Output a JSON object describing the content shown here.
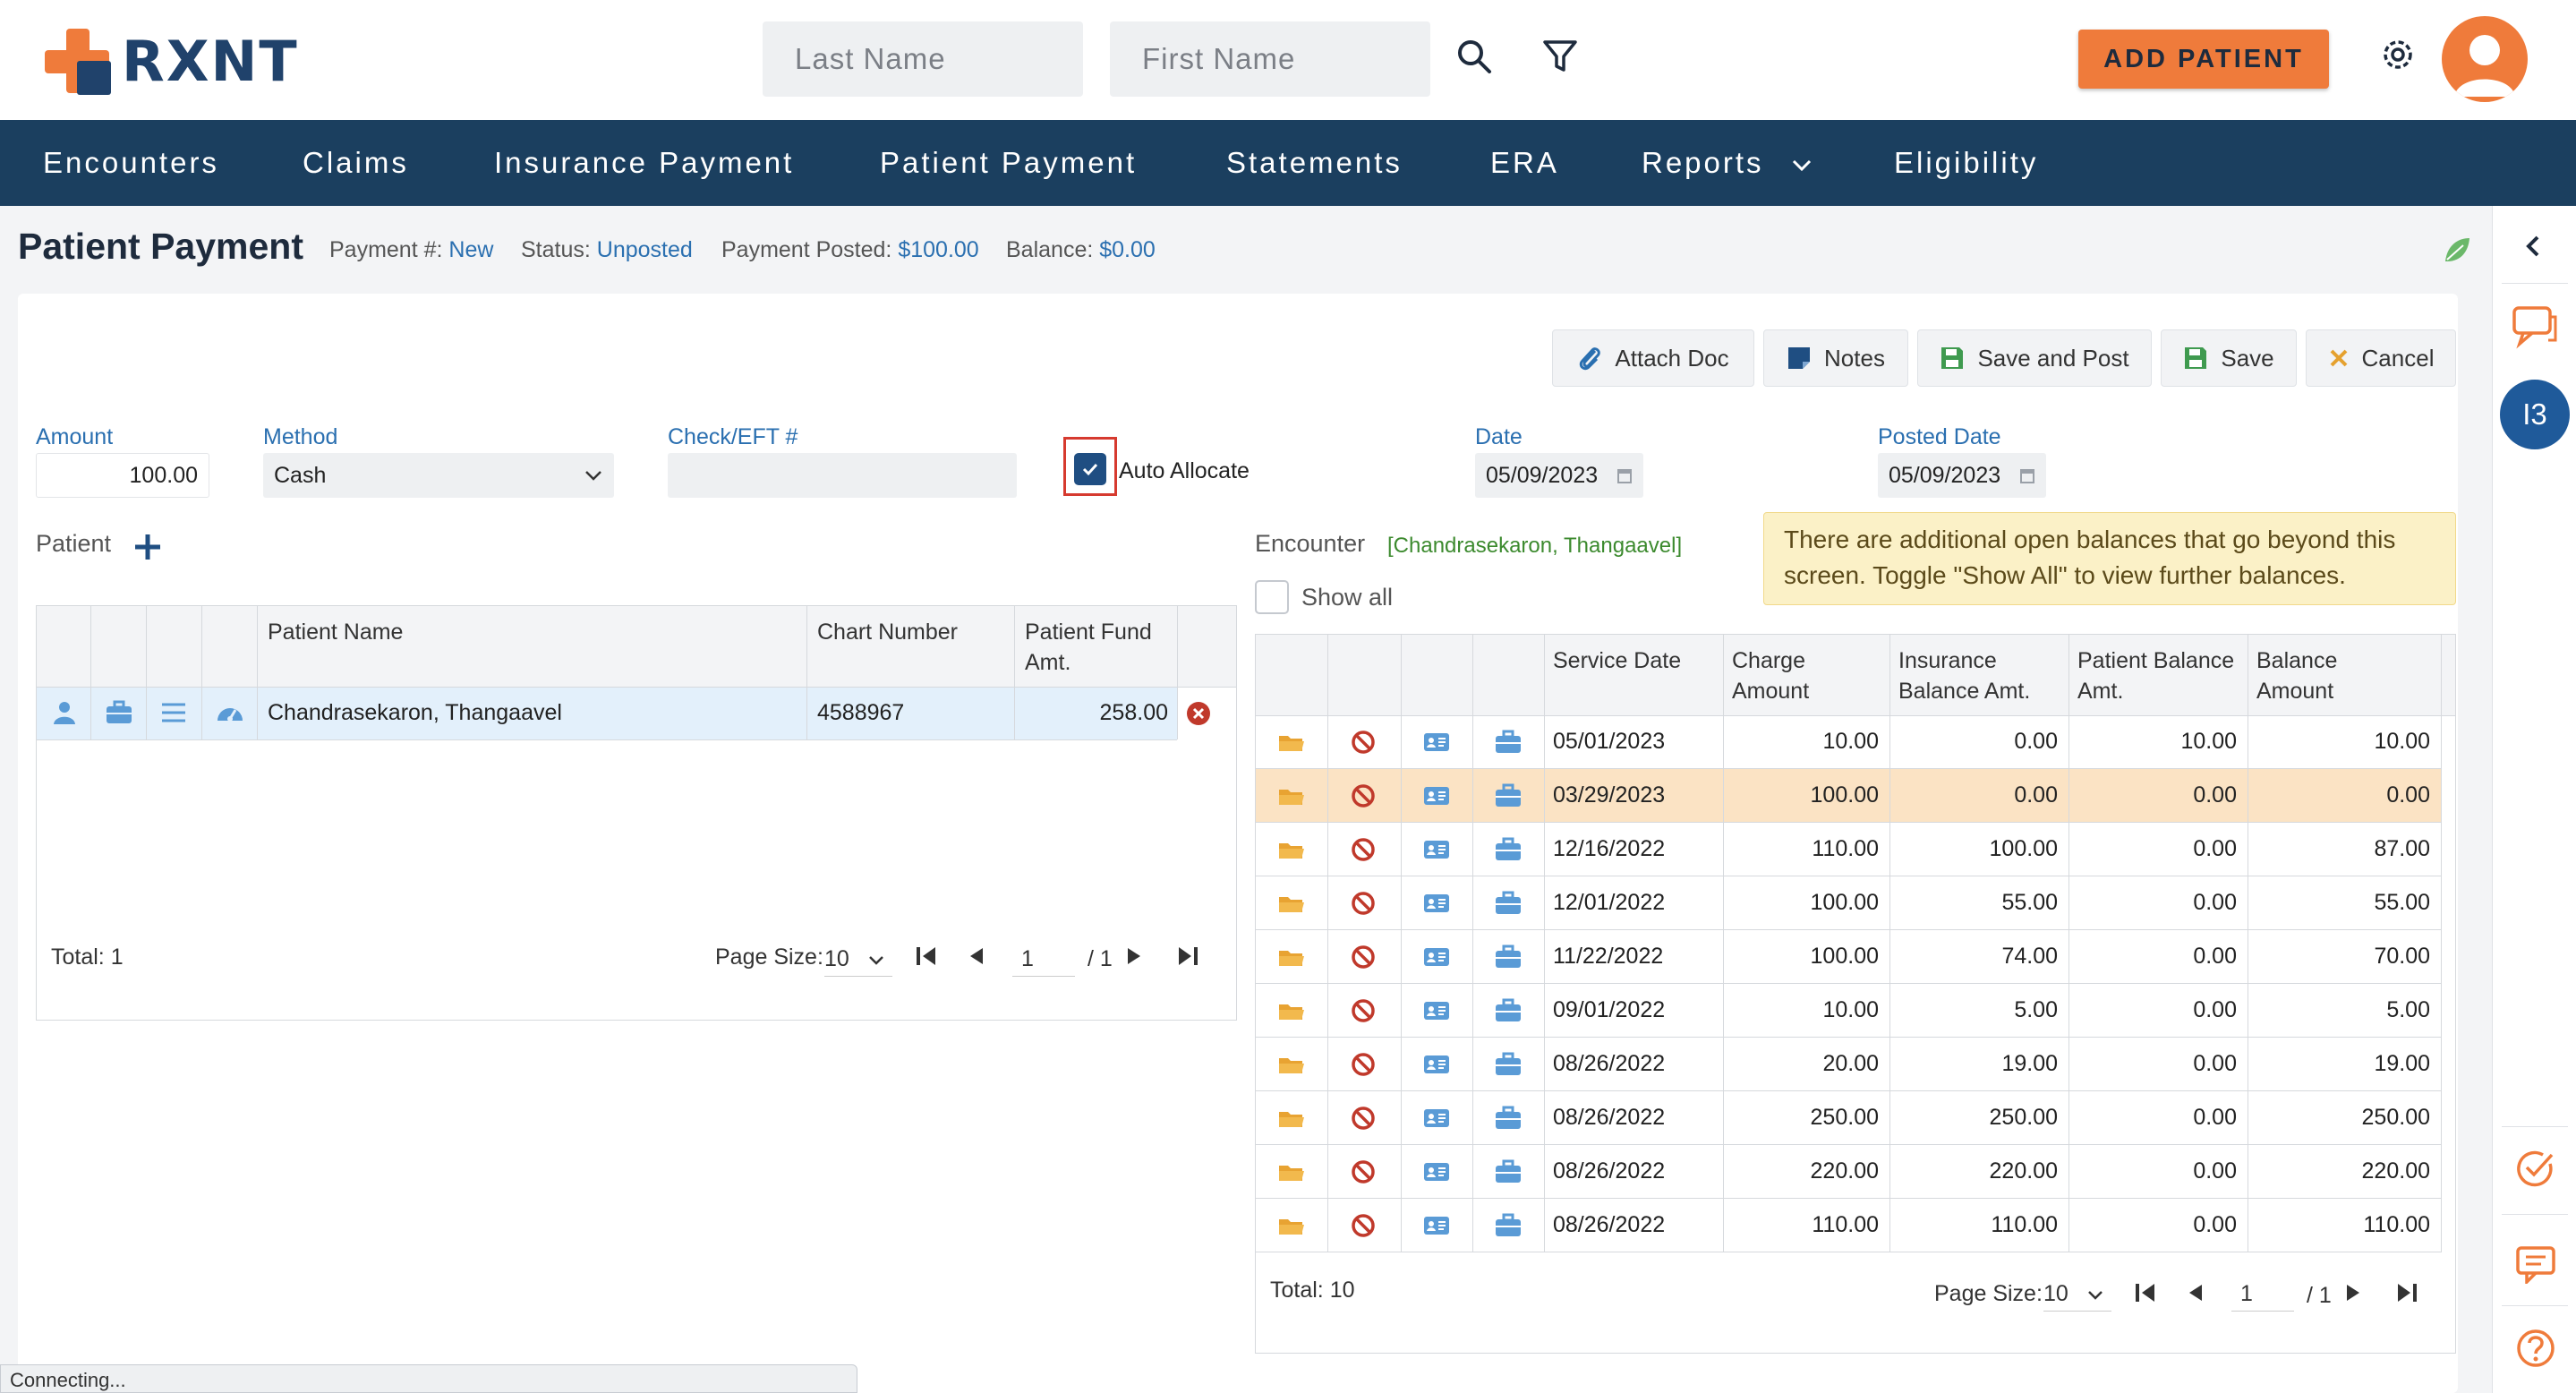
{
  "brand": {
    "name": "RXNT"
  },
  "search": {
    "last_name_placeholder": "Last Name",
    "first_name_placeholder": "First Name"
  },
  "header": {
    "add_patient_label": "ADD PATIENT"
  },
  "nav": {
    "items": [
      "Encounters",
      "Claims",
      "Insurance Payment",
      "Patient Payment",
      "Statements",
      "ERA",
      "Reports",
      "Eligibility"
    ]
  },
  "page": {
    "title": "Patient Payment",
    "payment_no_label": "Payment #:",
    "payment_no_value": "New",
    "status_label": "Status:",
    "status_value": "Unposted",
    "posted_label": "Payment Posted:",
    "posted_value": "$100.00",
    "balance_label": "Balance:",
    "balance_value": "$0.00"
  },
  "toolbar": {
    "attach_doc": "Attach Doc",
    "notes": "Notes",
    "save_and_post": "Save and Post",
    "save": "Save",
    "cancel": "Cancel"
  },
  "form": {
    "amount_label": "Amount",
    "amount_value": "100.00",
    "method_label": "Method",
    "method_value": "Cash",
    "check_label": "Check/EFT #",
    "check_value": "",
    "auto_allocate_label": "Auto Allocate",
    "auto_allocate_checked": true,
    "date_label": "Date",
    "date_value": "05/09/2023",
    "posted_date_label": "Posted Date",
    "posted_date_value": "05/09/2023"
  },
  "patient_section": {
    "label": "Patient",
    "columns": [
      "Patient Name",
      "Chart Number",
      "Patient Fund Amt."
    ],
    "rows": [
      {
        "name": "Chandrasekaron, Thangaavel",
        "chart": "4588967",
        "fund": "258.00"
      }
    ],
    "total_label": "Total: 1",
    "page_size_label": "Page Size:",
    "page_size_value": "10",
    "page_value": "1",
    "page_of": "/ 1"
  },
  "encounter_section": {
    "label": "Encounter",
    "patient_tag": "[Chandrasekaron, Thangaavel]",
    "notice": "There are additional open balances that go beyond this screen. Toggle \"Show All\" to view further balances.",
    "show_all_label": "Show all",
    "columns": [
      "Service Date",
      "Charge Amount",
      "Insurance Balance Amt.",
      "Patient Balance Amt.",
      "Balance Amount"
    ],
    "rows": [
      {
        "date": "05/01/2023",
        "charge": "10.00",
        "ins": "0.00",
        "pat": "10.00",
        "bal": "10.00",
        "highlight": false
      },
      {
        "date": "03/29/2023",
        "charge": "100.00",
        "ins": "0.00",
        "pat": "0.00",
        "bal": "0.00",
        "highlight": true
      },
      {
        "date": "12/16/2022",
        "charge": "110.00",
        "ins": "100.00",
        "pat": "0.00",
        "bal": "87.00",
        "highlight": false
      },
      {
        "date": "12/01/2022",
        "charge": "100.00",
        "ins": "55.00",
        "pat": "0.00",
        "bal": "55.00",
        "highlight": false
      },
      {
        "date": "11/22/2022",
        "charge": "100.00",
        "ins": "74.00",
        "pat": "0.00",
        "bal": "70.00",
        "highlight": false
      },
      {
        "date": "09/01/2022",
        "charge": "10.00",
        "ins": "5.00",
        "pat": "0.00",
        "bal": "5.00",
        "highlight": false
      },
      {
        "date": "08/26/2022",
        "charge": "20.00",
        "ins": "19.00",
        "pat": "0.00",
        "bal": "19.00",
        "highlight": false
      },
      {
        "date": "08/26/2022",
        "charge": "250.00",
        "ins": "250.00",
        "pat": "0.00",
        "bal": "250.00",
        "highlight": false
      },
      {
        "date": "08/26/2022",
        "charge": "220.00",
        "ins": "220.00",
        "pat": "0.00",
        "bal": "220.00",
        "highlight": false
      },
      {
        "date": "08/26/2022",
        "charge": "110.00",
        "ins": "110.00",
        "pat": "0.00",
        "bal": "110.00",
        "highlight": false
      }
    ],
    "total_label": "Total: 10",
    "page_size_label": "Page Size:",
    "page_size_value": "10",
    "page_value": "1",
    "page_of": "/ 1"
  },
  "rail": {
    "badge": "I3"
  },
  "status_bar": {
    "text": "Connecting..."
  },
  "colors": {
    "accent": "#ef7b3b",
    "nav_bg": "#1b3f5f",
    "link": "#2a6fb0",
    "highlight_row": "#fbe3c4"
  }
}
